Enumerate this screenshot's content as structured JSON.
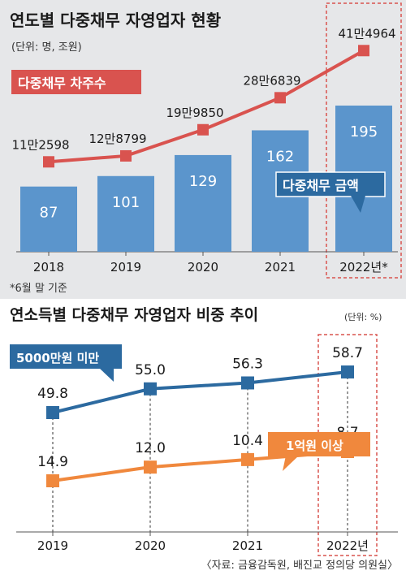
{
  "colors": {
    "bar": "#5b95cc",
    "line_top": "#d9534f",
    "panel_bg": "#e6e7e9",
    "highlight_border": "#d9534f",
    "blue_series": "#2c6aa0",
    "orange_series": "#f0883d"
  },
  "chart_data": [
    {
      "type": "bar+line",
      "title": "연도별 다중채무 자영업자 현황",
      "subtitle": "(단위: 명, 조원)",
      "categories": [
        "2018",
        "2019",
        "2020",
        "2021",
        "2022년*"
      ],
      "bar_series": {
        "name": "다중채무 금액",
        "values": [
          87,
          101,
          129,
          162,
          195
        ]
      },
      "line_series": {
        "name": "다중채무 차주수",
        "values": [
          112598,
          128799,
          199850,
          286839,
          414964
        ],
        "labels": [
          "11만2598",
          "12만8799",
          "19만9850",
          "28만6839",
          "41만4964"
        ]
      },
      "footnote": "*6월 말 기준",
      "highlight_category": "2022년*"
    },
    {
      "type": "line",
      "title": "연소득별 다중채무 자영업자 비중 추이",
      "unit": "(단위: %)",
      "categories": [
        "2019",
        "2020",
        "2021",
        "2022년"
      ],
      "series": [
        {
          "name": "5000만원 미만",
          "values": [
            49.8,
            55.0,
            56.3,
            58.7
          ],
          "labels": [
            "49.8",
            "55.0",
            "56.3",
            "58.7"
          ]
        },
        {
          "name": "1억원 이상",
          "values": [
            14.9,
            12.0,
            10.4,
            8.7
          ],
          "labels": [
            "14.9",
            "12.0",
            "10.4",
            "8.7"
          ]
        }
      ],
      "highlight_category": "2022년"
    }
  ],
  "source": "〈자료: 금융감독원, 배진교 정의당 의원실〉"
}
